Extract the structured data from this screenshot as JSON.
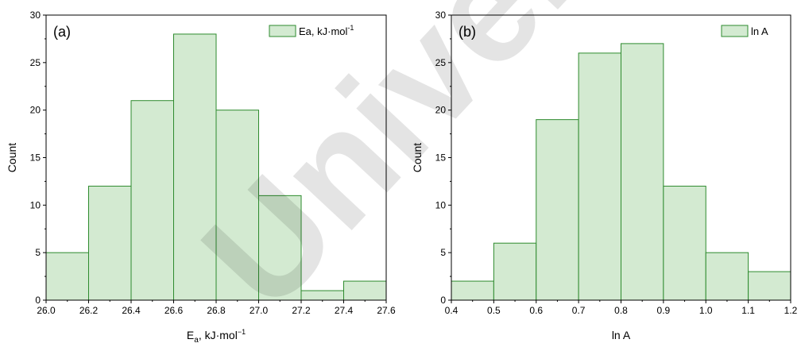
{
  "watermark": "Universite",
  "colors": {
    "bar_fill": "#d3ead1",
    "bar_stroke": "#2e8b2e",
    "axis": "#000000"
  },
  "chart_data": [
    {
      "type": "bar",
      "panel_label": "(a)",
      "legend": [
        {
          "name": "Ea, kJ·mol",
          "sup": "-1"
        }
      ],
      "legend_position": "top-right",
      "xlabel": "E",
      "xlabel_sub": "a",
      "xlabel_rest": ", kJ·mol",
      "xlabel_sup": "−1",
      "ylabel": "Count",
      "xlim": [
        26.0,
        27.6
      ],
      "ylim": [
        0,
        30
      ],
      "xticks": [
        "26.0",
        "26.2",
        "26.4",
        "26.6",
        "26.8",
        "27.0",
        "27.2",
        "27.4",
        "27.6"
      ],
      "yticks": [
        "0",
        "5",
        "10",
        "15",
        "20",
        "25",
        "30"
      ],
      "bin_edges": [
        26.0,
        26.2,
        26.4,
        26.6,
        26.8,
        27.0,
        27.2,
        27.4,
        27.6
      ],
      "values": [
        5,
        12,
        21,
        28,
        20,
        11,
        1,
        2
      ],
      "grid": false
    },
    {
      "type": "bar",
      "panel_label": "(b)",
      "legend": [
        {
          "name": "ln A",
          "sup": ""
        }
      ],
      "legend_position": "top-right",
      "xlabel": "ln A",
      "xlabel_sub": "",
      "xlabel_rest": "",
      "xlabel_sup": "",
      "ylabel": "Count",
      "xlim": [
        0.4,
        1.2
      ],
      "ylim": [
        0,
        30
      ],
      "xticks": [
        "0.4",
        "0.5",
        "0.6",
        "0.7",
        "0.8",
        "0.9",
        "1.0",
        "1.1",
        "1.2"
      ],
      "yticks": [
        "0",
        "5",
        "10",
        "15",
        "20",
        "25",
        "30"
      ],
      "bin_edges": [
        0.4,
        0.5,
        0.6,
        0.7,
        0.8,
        0.9,
        1.0,
        1.1,
        1.2
      ],
      "values": [
        2,
        6,
        19,
        26,
        27,
        12,
        5,
        3
      ],
      "grid": false
    }
  ]
}
